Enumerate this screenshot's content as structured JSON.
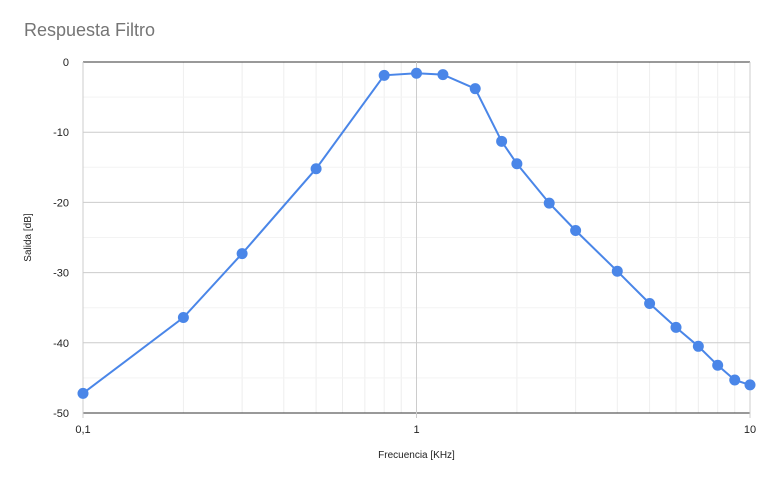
{
  "chart_data": {
    "type": "line",
    "title": "Respuesta Filtro",
    "xlabel": "Frecuencia [KHz]",
    "ylabel": "Salida [dB]",
    "x_scale": "log",
    "xlim": [
      0.1,
      10
    ],
    "ylim": [
      -50,
      0
    ],
    "x_ticks": [
      {
        "value": 0.1,
        "label": "0,1"
      },
      {
        "value": 1,
        "label": "1"
      },
      {
        "value": 10,
        "label": "10"
      }
    ],
    "y_ticks": [
      {
        "value": 0,
        "label": "0"
      },
      {
        "value": -10,
        "label": "-10"
      },
      {
        "value": -20,
        "label": "-20"
      },
      {
        "value": -30,
        "label": "-30"
      },
      {
        "value": -40,
        "label": "-40"
      },
      {
        "value": -50,
        "label": "-50"
      }
    ],
    "grid": true,
    "legend": "none",
    "color": "#4a86e8",
    "series": [
      {
        "x": [
          0.1,
          0.2,
          0.3,
          0.5,
          0.8,
          1.0,
          1.2,
          1.5,
          1.8,
          2.0,
          2.5,
          3.0,
          4.0,
          5.0,
          6.0,
          7.0,
          8.0,
          9.0,
          10.0
        ],
        "y": [
          -47.2,
          -36.4,
          -27.3,
          -15.2,
          -1.9,
          -1.6,
          -1.8,
          -3.8,
          -11.3,
          -14.5,
          -20.1,
          -24.0,
          -29.8,
          -34.4,
          -37.8,
          -40.5,
          -43.2,
          -45.3,
          -46.0
        ]
      }
    ]
  }
}
